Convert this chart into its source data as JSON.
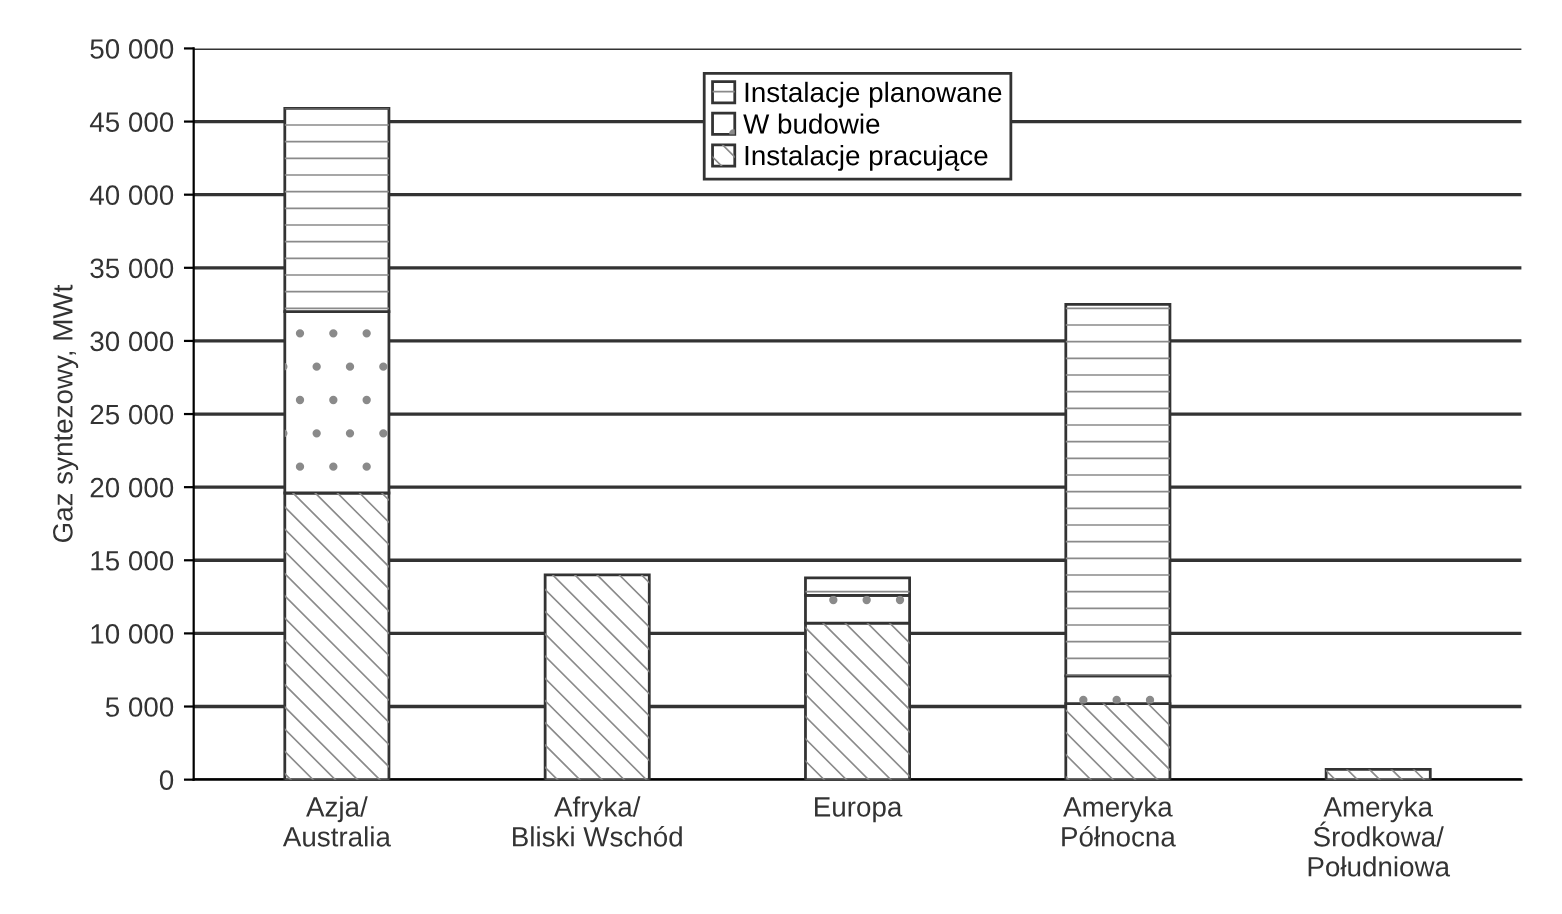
{
  "chart_data": {
    "type": "bar",
    "stacked": true,
    "ylabel": "Gaz syntezowy, MWt",
    "categories": [
      "Azja/\nAustralia",
      "Afryka/\nBliski Wschód",
      "Europa",
      "Ameryka\nPółnocna",
      "Ameryka\nŚrodkowa/\nPołudniowa"
    ],
    "series": [
      {
        "name": "Instalacje pracujące",
        "color": "#ffffff",
        "values": [
          19600,
          14000,
          10700,
          5200,
          700
        ]
      },
      {
        "name": "W budowie",
        "color": "#ffffff",
        "values": [
          12400,
          null,
          1900,
          1900,
          null
        ]
      },
      {
        "name": "Instalacje planowane",
        "color": "#ffffff",
        "values": [
          13900,
          null,
          1200,
          25400,
          null
        ]
      }
    ],
    "ylim": [
      0,
      50000
    ],
    "yticks": [
      {
        "value": 0,
        "label": "0"
      },
      {
        "value": 5000,
        "label": "5 000"
      },
      {
        "value": 10000,
        "label": "10 000"
      },
      {
        "value": 15000,
        "label": "15 000"
      },
      {
        "value": 20000,
        "label": "20 000"
      },
      {
        "value": 25000,
        "label": "25 000"
      },
      {
        "value": 30000,
        "label": "30 000"
      },
      {
        "value": 35000,
        "label": "35 000"
      },
      {
        "value": 40000,
        "label": "40 000"
      },
      {
        "value": 45000,
        "label": "45 000"
      },
      {
        "value": 50000,
        "label": "50 000"
      }
    ],
    "grid": "y",
    "legend": "top"
  }
}
